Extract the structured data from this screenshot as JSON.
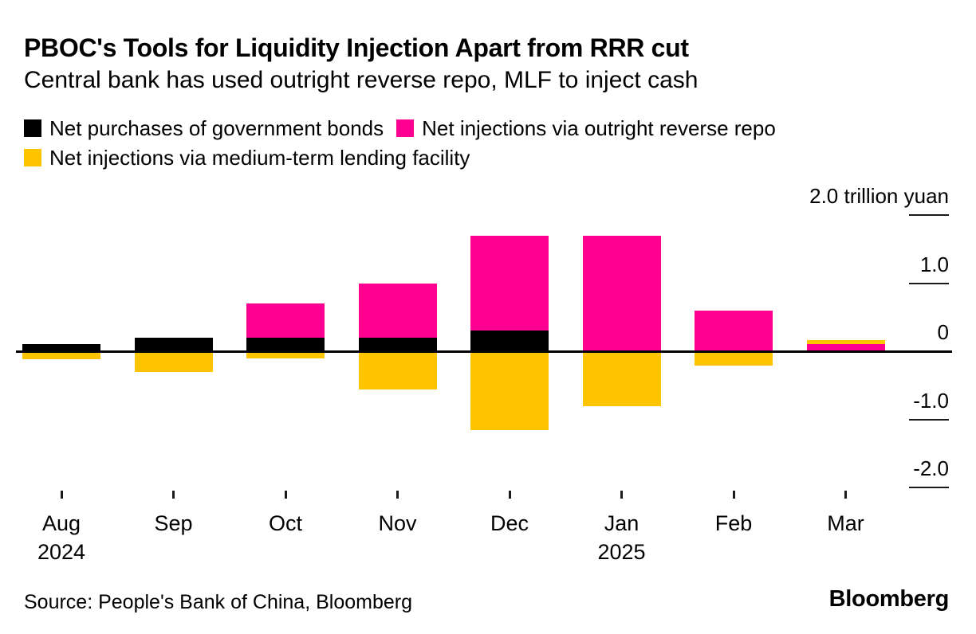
{
  "chart_data": {
    "type": "bar",
    "stacked": true,
    "title": "PBOC's Tools for Liquidity Injection Apart from RRR cut",
    "subtitle": "Central bank has used outright reverse repo, MLF to inject cash",
    "source": "Source: People's Bank of China, Bloomberg",
    "brand": "Bloomberg",
    "unit": "trillion yuan",
    "categories": [
      "Aug",
      "Sep",
      "Oct",
      "Nov",
      "Dec",
      "Jan",
      "Feb",
      "Mar"
    ],
    "category_year_labels": [
      {
        "index": 0,
        "text": "2024"
      },
      {
        "index": 5,
        "text": "2025"
      }
    ],
    "series": [
      {
        "key": "bonds",
        "name": "Net purchases of government bonds",
        "color": "#000000",
        "values": [
          0.1,
          0.2,
          0.2,
          0.2,
          0.3,
          0,
          0,
          0
        ]
      },
      {
        "key": "repo",
        "name": "Net injections via outright reverse repo",
        "color": "#FF0090",
        "values": [
          0,
          0,
          0.5,
          0.8,
          1.4,
          1.7,
          0.6,
          0.1
        ]
      },
      {
        "key": "mlf",
        "name": "Net injections via medium-term lending facility",
        "color": "#FFC400",
        "values": [
          -0.1,
          -0.29,
          -0.09,
          -0.55,
          -1.15,
          -0.8,
          -0.2,
          0.06
        ]
      }
    ],
    "yaxis": {
      "side": "right",
      "range": [
        -2.3,
        2.1
      ],
      "ticks": [
        {
          "value": 2.0,
          "label": "2.0 trillion yuan"
        },
        {
          "value": 1.0,
          "label": "1.0"
        },
        {
          "value": 0,
          "label": "0"
        },
        {
          "value": -1.0,
          "label": "-1.0"
        },
        {
          "value": -2.0,
          "label": "-2.0"
        }
      ]
    },
    "grid": false,
    "legend_position": "top-left"
  }
}
